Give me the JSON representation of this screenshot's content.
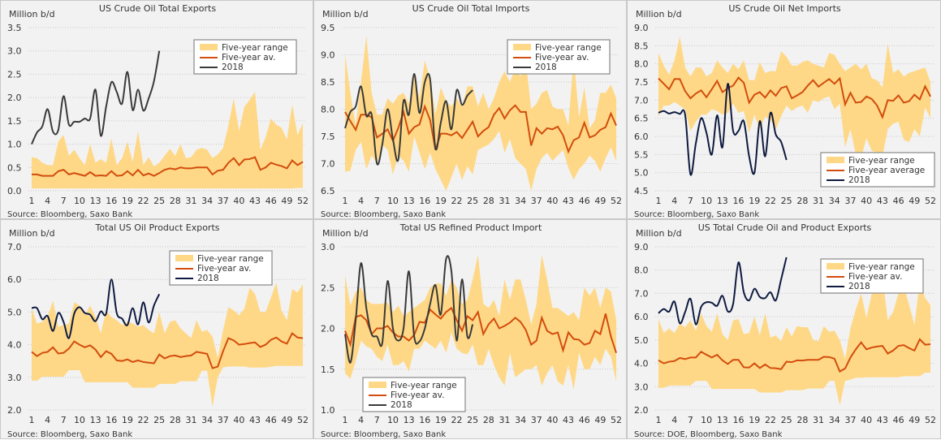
{
  "chart_data": [
    {
      "type": "area",
      "title": "US Crude Oil Total Exports",
      "ylabel": "Million b/d",
      "source": "Source: Bloomberg, Saxo Bank",
      "ylim": [
        0,
        3.5
      ],
      "ystep": 0.5,
      "x": "weeks 1-52",
      "xticks": [
        1,
        4,
        7,
        10,
        13,
        16,
        19,
        22,
        25,
        28,
        31,
        34,
        37,
        40,
        43,
        46,
        49,
        52
      ],
      "legend_position": "top-right",
      "legend": [
        "Five-year range",
        "Five-year av.",
        "2018"
      ],
      "line_color_2018": "#3a3a3a",
      "range_max": [
        0.72,
        0.7,
        0.6,
        0.55,
        0.55,
        1.05,
        1.2,
        0.75,
        0.88,
        0.7,
        0.55,
        1.0,
        0.6,
        0.68,
        0.6,
        1.12,
        0.55,
        0.7,
        1.05,
        0.62,
        1.28,
        0.55,
        0.72,
        0.52,
        0.6,
        0.75,
        0.9,
        0.75,
        1.0,
        0.7,
        0.72,
        0.88,
        0.92,
        0.88,
        0.7,
        0.78,
        0.92,
        1.4,
        1.98,
        1.28,
        1.8,
        1.95,
        2.12,
        0.88,
        1.15,
        1.55,
        1.42,
        1.35,
        1.1,
        1.85,
        1.2,
        1.45
      ],
      "range_min": [
        0.05,
        0.05,
        0.05,
        0.05,
        0.05,
        0.05,
        0.05,
        0.05,
        0.05,
        0.05,
        0.05,
        0.05,
        0.05,
        0.05,
        0.05,
        0.05,
        0.05,
        0.05,
        0.05,
        0.05,
        0.05,
        0.05,
        0.05,
        0.05,
        0.05,
        0.05,
        0.05,
        0.05,
        0.05,
        0.05,
        0.05,
        0.05,
        0.05,
        0.05,
        0.05,
        0.05,
        0.05,
        0.05,
        0.05,
        0.05,
        0.05,
        0.05,
        0.05,
        0.05,
        0.05,
        0.05,
        0.05,
        0.05,
        0.05,
        0.05,
        0.06,
        0.06
      ],
      "avg": [
        0.35,
        0.35,
        0.32,
        0.32,
        0.32,
        0.42,
        0.45,
        0.35,
        0.38,
        0.35,
        0.32,
        0.4,
        0.32,
        0.33,
        0.32,
        0.42,
        0.32,
        0.33,
        0.42,
        0.33,
        0.45,
        0.33,
        0.37,
        0.32,
        0.38,
        0.45,
        0.48,
        0.46,
        0.5,
        0.48,
        0.48,
        0.5,
        0.5,
        0.5,
        0.35,
        0.43,
        0.45,
        0.6,
        0.7,
        0.55,
        0.67,
        0.68,
        0.72,
        0.45,
        0.5,
        0.6,
        0.56,
        0.53,
        0.48,
        0.65,
        0.55,
        0.62
      ],
      "y2018": [
        1.0,
        1.25,
        1.38,
        1.75,
        1.27,
        1.3,
        2.03,
        1.42,
        1.48,
        1.48,
        1.55,
        1.55,
        2.17,
        1.18,
        1.8,
        2.33,
        2.12,
        1.87,
        2.55,
        1.73,
        2.17,
        1.72,
        1.98,
        2.35,
        3.0
      ]
    },
    {
      "type": "area",
      "title": "US Crude Oil Total Imports",
      "ylabel": "Million b/d",
      "source": "Source: Bloomberg, Saxo Bank",
      "ylim": [
        6.5,
        9.5
      ],
      "ystep": 0.5,
      "xticks": [
        1,
        4,
        7,
        10,
        13,
        16,
        19,
        22,
        25,
        28,
        31,
        34,
        37,
        40,
        43,
        46,
        49,
        52
      ],
      "legend_position": "top-right",
      "legend": [
        "Five-year range",
        "Five-year av.",
        "2018"
      ],
      "line_color_2018": "#3a3a3a",
      "range_max": [
        9.0,
        8.3,
        7.7,
        8.5,
        9.35,
        8.3,
        7.9,
        7.9,
        8.2,
        8.1,
        8.25,
        8.3,
        8.1,
        8.65,
        8.2,
        8.9,
        8.55,
        7.9,
        8.4,
        8.15,
        8.05,
        8.2,
        8.05,
        8.42,
        8.42,
        8.05,
        8.3,
        8.0,
        8.2,
        8.5,
        8.7,
        8.5,
        8.75,
        8.6,
        8.9,
        8.0,
        8.1,
        8.3,
        8.35,
        8.05,
        8.0,
        8.0,
        7.7,
        8.95,
        7.85,
        8.4,
        7.65,
        7.8,
        8.3,
        8.3,
        8.45,
        8.2
      ],
      "range_min": [
        6.85,
        6.87,
        7.25,
        7.4,
        6.9,
        7.15,
        7.0,
        7.35,
        7.25,
        6.8,
        7.15,
        7.05,
        6.85,
        7.5,
        7.2,
        6.9,
        7.2,
        6.9,
        6.7,
        6.5,
        6.75,
        7.0,
        6.7,
        6.95,
        6.8,
        7.25,
        7.3,
        7.35,
        7.45,
        7.6,
        7.2,
        7.45,
        7.1,
        7.0,
        6.9,
        6.5,
        6.9,
        7.1,
        7.2,
        7.05,
        7.15,
        7.25,
        6.92,
        6.7,
        6.9,
        7.0,
        7.15,
        7.05,
        6.85,
        7.1,
        7.3,
        7.05
      ],
      "avg": [
        7.95,
        7.78,
        7.62,
        7.9,
        7.9,
        7.85,
        7.48,
        7.55,
        7.63,
        7.42,
        7.65,
        7.95,
        7.55,
        7.67,
        7.72,
        8.05,
        7.8,
        7.25,
        7.55,
        7.55,
        7.52,
        7.58,
        7.47,
        7.62,
        7.77,
        7.5,
        7.6,
        7.67,
        7.9,
        8.02,
        7.83,
        7.98,
        8.07,
        7.95,
        7.95,
        7.33,
        7.65,
        7.55,
        7.65,
        7.63,
        7.68,
        7.52,
        7.22,
        7.43,
        7.48,
        7.75,
        7.48,
        7.52,
        7.62,
        7.67,
        7.92,
        7.7
      ],
      "y2018": [
        7.65,
        7.95,
        8.05,
        8.42,
        7.88,
        7.9,
        7.0,
        7.35,
        8.0,
        7.45,
        7.07,
        8.15,
        7.9,
        8.65,
        7.93,
        8.5,
        8.55,
        7.28,
        7.75,
        8.15,
        7.63,
        8.35,
        8.08,
        8.25,
        8.35
      ]
    },
    {
      "type": "area",
      "title": "US Crude Oil Net Imports",
      "ylabel": "Million b/d",
      "source": "Source: Bloomberg, Saxo Bank",
      "ylim": [
        4.5,
        9.0
      ],
      "ystep": 0.5,
      "xticks": [
        1,
        4,
        7,
        10,
        13,
        16,
        19,
        22,
        25,
        28,
        31,
        34,
        37,
        40,
        43,
        46,
        49,
        52
      ],
      "legend_position": "bottom-right",
      "legend": [
        "Five-year range",
        "Five-year average",
        "2018"
      ],
      "line_color_2018": "#0e1a40",
      "range_max": [
        8.3,
        7.95,
        7.7,
        8.1,
        8.75,
        7.9,
        7.65,
        7.9,
        7.9,
        7.65,
        7.75,
        8.1,
        7.9,
        7.75,
        8.0,
        7.85,
        8.1,
        7.55,
        7.55,
        8.05,
        7.75,
        7.8,
        7.8,
        8.35,
        8.2,
        7.95,
        7.95,
        8.05,
        8.1,
        8.0,
        7.95,
        7.9,
        8.3,
        8.25,
        8.0,
        7.8,
        7.9,
        8.0,
        7.85,
        8.0,
        7.6,
        7.55,
        7.35,
        8.55,
        7.75,
        7.85,
        7.65,
        7.75,
        7.8,
        7.85,
        7.9,
        7.5
      ],
      "range_min": [
        6.55,
        6.85,
        6.85,
        6.95,
        6.85,
        6.75,
        6.15,
        6.4,
        6.6,
        6.6,
        6.75,
        6.7,
        6.6,
        6.65,
        6.9,
        6.65,
        6.7,
        6.1,
        6.6,
        6.2,
        6.55,
        6.45,
        6.2,
        6.55,
        6.85,
        6.7,
        6.8,
        6.85,
        6.65,
        7.0,
        6.95,
        7.05,
        7.1,
        6.75,
        6.9,
        5.7,
        6.2,
        5.5,
        5.4,
        5.95,
        5.6,
        5.55,
        5.45,
        6.2,
        6.35,
        6.4,
        5.9,
        5.85,
        6.2,
        6.0,
        6.8,
        6.5
      ],
      "avg": [
        7.6,
        7.45,
        7.3,
        7.58,
        7.58,
        7.25,
        7.05,
        7.18,
        7.27,
        7.08,
        7.3,
        7.53,
        7.22,
        7.33,
        7.4,
        7.62,
        7.48,
        6.93,
        7.15,
        7.22,
        7.07,
        7.27,
        7.12,
        7.33,
        7.38,
        7.05,
        7.13,
        7.22,
        7.4,
        7.55,
        7.37,
        7.48,
        7.58,
        7.45,
        7.6,
        6.88,
        7.2,
        6.93,
        6.95,
        7.1,
        7.03,
        6.85,
        6.53,
        7.0,
        6.98,
        7.13,
        6.93,
        6.97,
        7.15,
        7.02,
        7.38,
        7.1
      ],
      "y2018": [
        6.65,
        6.7,
        6.63,
        6.67,
        6.62,
        6.6,
        4.95,
        5.8,
        6.5,
        6.1,
        5.5,
        6.58,
        5.7,
        7.45,
        6.15,
        6.15,
        6.42,
        5.45,
        5.0,
        6.42,
        5.45,
        6.65,
        6.05,
        5.85,
        5.35
      ]
    },
    {
      "type": "area",
      "title": "Total US Oil Product Exports",
      "ylabel": "Million b/d",
      "source": "Source: Bloomberg, Saxo Bank",
      "ylim": [
        2.0,
        7.0
      ],
      "ystep": 1.0,
      "xticks": [
        1,
        4,
        7,
        10,
        13,
        16,
        19,
        22,
        25,
        28,
        31,
        34,
        37,
        40,
        43,
        46,
        49,
        52
      ],
      "legend_position": "top-center-right",
      "legend": [
        "Five-year range",
        "Five-year av.",
        "2018"
      ],
      "line_color_2018": "#0e1a40",
      "range_max": [
        5.1,
        4.65,
        4.7,
        4.85,
        5.35,
        4.55,
        4.6,
        4.65,
        5.3,
        5.2,
        4.9,
        5.2,
        4.85,
        4.35,
        5.05,
        4.85,
        4.75,
        4.6,
        4.7,
        4.65,
        4.55,
        4.6,
        4.45,
        4.35,
        5.0,
        4.35,
        4.7,
        4.75,
        4.5,
        4.35,
        4.2,
        4.75,
        4.4,
        4.45,
        4.25,
        3.6,
        4.45,
        5.15,
        5.05,
        4.9,
        5.1,
        5.75,
        5.55,
        5.0,
        5.0,
        5.45,
        5.9,
        5.05,
        4.75,
        5.7,
        5.6,
        5.85
      ],
      "range_min": [
        2.9,
        2.9,
        3.02,
        3.02,
        3.02,
        3.02,
        3.02,
        3.22,
        3.22,
        3.22,
        2.85,
        2.85,
        2.85,
        2.85,
        2.85,
        2.85,
        2.85,
        2.85,
        2.85,
        2.68,
        2.68,
        2.68,
        2.68,
        2.68,
        2.8,
        2.8,
        2.8,
        2.8,
        2.88,
        2.88,
        2.88,
        2.88,
        3.2,
        3.2,
        2.1,
        3.0,
        3.3,
        3.33,
        3.33,
        3.33,
        3.33,
        3.3,
        3.3,
        3.3,
        3.3,
        3.32,
        3.35,
        3.35,
        3.35,
        3.35,
        3.35,
        3.35
      ],
      "avg": [
        3.78,
        3.65,
        3.75,
        3.78,
        3.92,
        3.73,
        3.75,
        3.88,
        4.1,
        4.0,
        3.92,
        3.98,
        3.85,
        3.62,
        3.8,
        3.72,
        3.52,
        3.5,
        3.55,
        3.47,
        3.52,
        3.47,
        3.45,
        3.43,
        3.7,
        3.58,
        3.65,
        3.67,
        3.62,
        3.65,
        3.67,
        3.78,
        3.75,
        3.72,
        3.28,
        3.33,
        3.8,
        4.2,
        4.13,
        4.0,
        4.02,
        4.05,
        4.07,
        3.93,
        4.0,
        4.15,
        4.22,
        4.1,
        4.03,
        4.35,
        4.22,
        4.2
      ],
      "y2018": [
        5.12,
        5.12,
        4.78,
        4.88,
        4.42,
        4.97,
        4.7,
        4.2,
        4.95,
        5.15,
        4.97,
        4.92,
        4.72,
        5.02,
        4.95,
        6.0,
        4.97,
        4.8,
        4.6,
        5.12,
        4.62,
        5.3,
        4.68,
        5.2,
        5.55
      ]
    },
    {
      "type": "area",
      "title": "Total US Refined Product Import",
      "ylabel": "Million b/d",
      "source": "Source: Bloomberg, Saxo Bank",
      "ylim": [
        1.0,
        3.0
      ],
      "ystep": 0.5,
      "xticks": [
        1,
        4,
        7,
        10,
        13,
        16,
        19,
        22,
        25,
        28,
        31,
        34,
        37,
        40,
        43,
        46,
        49,
        52
      ],
      "legend_position": "bottom-left",
      "legend": [
        "Five-year range",
        "Five-year av.",
        "2018"
      ],
      "line_color_2018": "#3a3a3a",
      "range_max": [
        2.65,
        2.28,
        2.45,
        2.5,
        2.35,
        2.3,
        2.3,
        2.3,
        2.32,
        2.2,
        2.28,
        2.15,
        2.2,
        2.25,
        2.3,
        2.35,
        2.5,
        2.55,
        2.55,
        2.4,
        2.6,
        2.5,
        2.3,
        2.35,
        2.6,
        2.9,
        2.3,
        2.25,
        2.35,
        2.15,
        2.6,
        2.35,
        2.6,
        2.6,
        2.35,
        2.05,
        2.3,
        2.9,
        2.6,
        2.25,
        2.25,
        2.2,
        2.15,
        2.2,
        2.1,
        2.5,
        2.4,
        2.5,
        2.25,
        2.5,
        2.45,
        2.1
      ],
      "range_min": [
        1.45,
        1.38,
        1.6,
        1.85,
        1.78,
        1.75,
        1.65,
        1.6,
        1.8,
        1.55,
        1.55,
        1.6,
        1.47,
        1.75,
        1.75,
        1.85,
        1.8,
        1.75,
        1.85,
        1.7,
        1.95,
        1.75,
        1.7,
        1.68,
        1.8,
        1.55,
        1.55,
        1.75,
        1.55,
        1.4,
        1.3,
        1.7,
        1.4,
        1.45,
        1.5,
        1.5,
        1.55,
        1.3,
        1.45,
        1.55,
        1.35,
        1.3,
        1.55,
        1.25,
        1.7,
        1.5,
        1.5,
        1.65,
        1.55,
        1.75,
        1.65,
        1.35
      ],
      "avg": [
        1.97,
        1.8,
        2.14,
        2.16,
        2.1,
        1.93,
        2.0,
        2.0,
        2.03,
        1.95,
        1.9,
        1.9,
        1.85,
        1.92,
        2.08,
        2.07,
        2.23,
        2.17,
        2.12,
        2.2,
        2.25,
        2.1,
        1.97,
        2.15,
        2.1,
        2.2,
        1.93,
        2.05,
        2.12,
        2.0,
        2.03,
        2.07,
        2.13,
        2.08,
        1.98,
        1.8,
        1.85,
        2.13,
        1.97,
        1.93,
        1.95,
        1.73,
        1.95,
        1.87,
        1.86,
        1.8,
        1.82,
        1.97,
        1.93,
        2.18,
        1.9,
        1.7
      ],
      "y2018": [
        1.93,
        1.58,
        2.1,
        2.8,
        2.25,
        1.93,
        1.9,
        1.82,
        2.58,
        2.0,
        1.85,
        2.0,
        2.7,
        1.9,
        1.84,
        2.0,
        2.3,
        2.53,
        2.17,
        2.85,
        2.7,
        1.85,
        2.6,
        1.9,
        2.05
      ]
    },
    {
      "type": "area",
      "title": "US Total Crude Oil and Product Exports",
      "ylabel": "Million b/d",
      "source": "Source: DOE, Bloomberg, Saxo Bank",
      "ylim": [
        2.0,
        9.0
      ],
      "ystep": 1.0,
      "xticks": [
        1,
        4,
        7,
        10,
        13,
        16,
        19,
        22,
        25,
        28,
        31,
        34,
        37,
        40,
        43,
        46,
        49,
        52
      ],
      "legend_position": "top-right",
      "legend": [
        "Five-year range",
        "Five-year av.",
        "2018"
      ],
      "line_color_2018": "#0e1a40",
      "range_max": [
        5.9,
        5.3,
        5.5,
        5.3,
        5.7,
        5.55,
        5.85,
        5.4,
        6.15,
        5.6,
        5.35,
        6.15,
        5.25,
        5.0,
        5.85,
        5.9,
        5.25,
        5.3,
        6.0,
        5.2,
        6.15,
        5.1,
        5.2,
        4.95,
        5.55,
        5.15,
        5.6,
        5.55,
        5.55,
        5.0,
        4.95,
        5.6,
        5.35,
        5.4,
        5.0,
        4.2,
        5.5,
        6.3,
        7.0,
        5.95,
        7.0,
        7.7,
        7.7,
        5.85,
        6.2,
        7.0,
        7.35,
        6.5,
        5.65,
        7.5,
        6.8,
        6.5
      ],
      "range_min": [
        2.95,
        2.95,
        3.05,
        3.05,
        3.05,
        3.05,
        3.05,
        3.25,
        3.25,
        3.25,
        2.9,
        2.9,
        2.9,
        2.9,
        2.9,
        2.9,
        2.9,
        2.9,
        2.9,
        2.75,
        2.75,
        2.75,
        2.75,
        2.75,
        2.85,
        2.85,
        2.85,
        2.85,
        2.92,
        2.92,
        2.92,
        2.92,
        3.25,
        3.25,
        2.2,
        3.25,
        3.3,
        3.38,
        3.38,
        3.4,
        3.4,
        3.4,
        3.4,
        3.4,
        3.4,
        3.4,
        3.45,
        3.45,
        3.45,
        3.45,
        3.6,
        3.6
      ],
      "avg": [
        4.13,
        4.0,
        4.07,
        4.1,
        4.23,
        4.18,
        4.25,
        4.25,
        4.5,
        4.37,
        4.25,
        4.37,
        4.13,
        3.97,
        4.15,
        4.15,
        3.83,
        3.82,
        4.0,
        3.8,
        3.95,
        3.8,
        3.79,
        3.75,
        4.07,
        4.05,
        4.13,
        4.12,
        4.15,
        4.15,
        4.15,
        4.28,
        4.27,
        4.2,
        3.65,
        3.78,
        4.25,
        4.6,
        4.9,
        4.6,
        4.68,
        4.72,
        4.75,
        4.42,
        4.55,
        4.75,
        4.78,
        4.65,
        4.55,
        5.03,
        4.8,
        4.82
      ],
      "y2018": [
        6.15,
        6.33,
        6.22,
        6.65,
        5.72,
        6.2,
        6.77,
        5.67,
        6.42,
        6.62,
        6.6,
        6.47,
        6.9,
        6.23,
        6.55,
        8.33,
        7.05,
        6.7,
        7.2,
        6.85,
        6.8,
        7.05,
        6.7,
        7.6,
        8.55
      ]
    }
  ],
  "colors": {
    "range_fill": "#fed886",
    "avg_line": "#d24d0e",
    "grid": "#c8c8c8"
  }
}
